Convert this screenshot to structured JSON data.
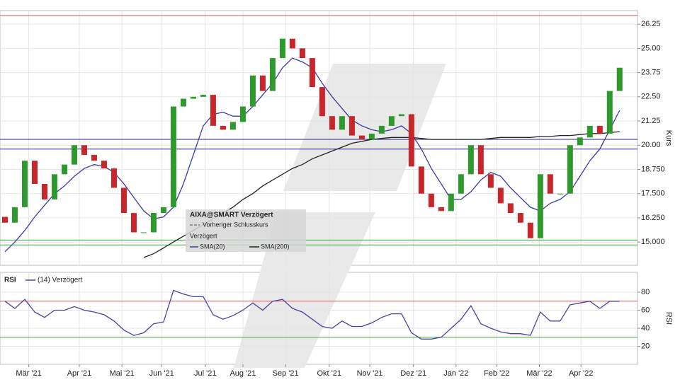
{
  "chart_data": [
    {
      "type": "candlestick",
      "y_label": "Kurs",
      "legend_title": "AIXA@SMART Verzögert",
      "legend_notes": [
        "Vorheriger Schlusskurs",
        "Verzögert"
      ],
      "x": [
        0,
        1,
        2,
        3,
        4,
        5,
        6,
        7,
        8,
        9,
        10,
        11,
        12,
        13,
        14,
        15,
        16,
        17,
        18,
        19,
        20,
        21,
        22,
        23,
        24,
        25,
        26,
        27,
        28,
        29,
        30,
        31,
        32,
        33,
        34,
        35,
        36,
        37,
        38,
        39,
        40,
        41,
        42,
        43,
        44,
        45,
        46,
        47,
        48,
        49,
        50,
        51,
        52,
        53,
        54,
        55,
        56,
        57,
        58,
        59,
        60,
        61,
        62
      ],
      "open": [
        16.3,
        16.0,
        16.8,
        19.2,
        18.0,
        17.2,
        18.5,
        19.0,
        20.0,
        19.5,
        19.2,
        18.8,
        17.8,
        16.5,
        15.5,
        15.5,
        16.5,
        16.8,
        22.0,
        22.4,
        22.5,
        22.6,
        21.0,
        20.8,
        21.2,
        22.0,
        23.6,
        22.8,
        24.5,
        25.5,
        25.0,
        24.5,
        23.0,
        21.5,
        20.8,
        21.5,
        20.5,
        20.3,
        20.6,
        21.0,
        21.5,
        21.6,
        18.9,
        17.5,
        16.8,
        16.6,
        17.5,
        18.5,
        20.0,
        18.5,
        17.8,
        17.0,
        16.5,
        16.0,
        15.2,
        18.5,
        17.5,
        17.5,
        20.0,
        20.4,
        21.0,
        20.6,
        22.8
      ],
      "close": [
        16.0,
        16.8,
        19.2,
        18.0,
        17.2,
        18.5,
        19.0,
        20.0,
        19.5,
        19.2,
        18.8,
        17.8,
        16.5,
        15.5,
        15.5,
        16.5,
        16.8,
        22.0,
        22.4,
        22.5,
        22.6,
        21.0,
        20.8,
        21.2,
        22.0,
        23.6,
        22.8,
        24.5,
        25.5,
        25.0,
        24.5,
        23.0,
        21.5,
        20.8,
        21.5,
        20.5,
        20.3,
        20.6,
        21.0,
        21.5,
        21.6,
        18.9,
        17.5,
        16.8,
        16.6,
        17.5,
        18.5,
        20.0,
        18.5,
        17.8,
        17.0,
        16.5,
        16.0,
        15.2,
        18.5,
        17.5,
        17.5,
        20.0,
        20.4,
        21.0,
        20.6,
        22.8,
        24.0
      ],
      "up_color": "#2e9a2e",
      "down_color": "#c8262b",
      "series": [
        {
          "name": "SMA(20)",
          "color": "#3b3ba6",
          "values": [
            14.5,
            15.0,
            15.6,
            16.3,
            16.9,
            17.5,
            17.9,
            18.4,
            18.8,
            19.0,
            18.9,
            18.6,
            18.0,
            17.3,
            16.6,
            16.2,
            16.3,
            16.8,
            18.0,
            19.5,
            21.0,
            21.6,
            21.7,
            21.5,
            21.5,
            22.0,
            22.6,
            23.2,
            24.0,
            24.5,
            24.3,
            24.0,
            23.2,
            22.5,
            21.9,
            21.3,
            21.0,
            20.8,
            20.7,
            20.8,
            21.0,
            20.6,
            19.8,
            18.8,
            18.0,
            17.2,
            17.2,
            17.6,
            18.2,
            18.6,
            18.4,
            17.8,
            17.3,
            16.8,
            16.6,
            17.0,
            17.2,
            17.6,
            18.4,
            19.2,
            19.8,
            20.8,
            21.8
          ]
        },
        {
          "name": "SMA(200)",
          "color": "#222222",
          "values": [
            null,
            null,
            null,
            null,
            null,
            null,
            null,
            null,
            null,
            null,
            null,
            null,
            null,
            null,
            14.2,
            14.4,
            14.7,
            15.0,
            15.3,
            15.6,
            15.9,
            16.2,
            16.5,
            16.8,
            17.2,
            17.5,
            17.9,
            18.2,
            18.5,
            18.8,
            19.0,
            19.3,
            19.5,
            19.7,
            19.9,
            20.1,
            20.2,
            20.3,
            20.35,
            20.4,
            20.4,
            20.4,
            20.35,
            20.3,
            20.3,
            20.3,
            20.3,
            20.3,
            20.3,
            20.35,
            20.4,
            20.4,
            20.4,
            20.4,
            20.45,
            20.45,
            20.5,
            20.5,
            20.55,
            20.6,
            20.6,
            20.65,
            20.7
          ]
        }
      ],
      "reference_lines": [
        {
          "value": 26.7,
          "color": "#e05555"
        },
        {
          "value": 20.3,
          "color": "#23238f"
        },
        {
          "value": 19.8,
          "color": "#23238f"
        },
        {
          "value": 15.1,
          "color": "#3aa83a"
        },
        {
          "value": 14.85,
          "color": "#3aa83a"
        }
      ],
      "xlim": [
        -0.5,
        63.8
      ],
      "ylim": [
        13.8,
        26.95
      ],
      "yticks": [
        {
          "value": 15,
          "label": "15.000"
        },
        {
          "value": 16.25,
          "label": "16.250"
        },
        {
          "value": 17.5,
          "label": "17.500"
        },
        {
          "value": 18.75,
          "label": "18.750"
        },
        {
          "value": 20,
          "label": "20.00"
        },
        {
          "value": 21.25,
          "label": "21.25"
        },
        {
          "value": 22.5,
          "label": "22.50"
        },
        {
          "value": 23.75,
          "label": "23.75"
        },
        {
          "value": 25,
          "label": "25.00"
        },
        {
          "value": 26.25,
          "label": "26.25"
        }
      ],
      "grid": true
    },
    {
      "type": "line",
      "title": "RSI",
      "y_label": "RSI",
      "x": [
        0,
        1,
        2,
        3,
        4,
        5,
        6,
        7,
        8,
        9,
        10,
        11,
        12,
        13,
        14,
        15,
        16,
        17,
        18,
        19,
        20,
        21,
        22,
        23,
        24,
        25,
        26,
        27,
        28,
        29,
        30,
        31,
        32,
        33,
        34,
        35,
        36,
        37,
        38,
        39,
        40,
        41,
        42,
        43,
        44,
        45,
        46,
        47,
        48,
        49,
        50,
        51,
        52,
        53,
        54,
        55,
        56,
        57,
        58,
        59,
        60,
        61,
        62
      ],
      "series": [
        {
          "name": "(14) Verzögert",
          "color": "#4545a0",
          "values": [
            70,
            62,
            72,
            58,
            52,
            60,
            60,
            64,
            60,
            58,
            55,
            48,
            38,
            32,
            35,
            45,
            47,
            82,
            78,
            75,
            75,
            55,
            50,
            54,
            60,
            68,
            60,
            70,
            72,
            62,
            58,
            50,
            42,
            40,
            48,
            42,
            42,
            46,
            52,
            56,
            56,
            35,
            28,
            28,
            30,
            40,
            50,
            65,
            45,
            40,
            36,
            34,
            34,
            32,
            58,
            48,
            48,
            66,
            68,
            70,
            62,
            70,
            70
          ]
        }
      ],
      "reference_lines": [
        {
          "value": 70,
          "color": "#e05555"
        },
        {
          "value": 30,
          "color": "#3aa83a"
        }
      ],
      "xlim": [
        -0.5,
        63.8
      ],
      "ylim": [
        0,
        102
      ],
      "yticks": [
        20,
        40,
        60,
        80
      ],
      "xticks": [
        {
          "value": 2.4,
          "label": "Mär '21"
        },
        {
          "value": 7.5,
          "label": "Apr '21"
        },
        {
          "value": 11.8,
          "label": "Mai '21"
        },
        {
          "value": 15.8,
          "label": "Jun '21"
        },
        {
          "value": 20.2,
          "label": "Jul '21"
        },
        {
          "value": 24,
          "label": "Aug '21"
        },
        {
          "value": 28.3,
          "label": "Sep '21"
        },
        {
          "value": 32.7,
          "label": "Okt '21"
        },
        {
          "value": 36.8,
          "label": "Nov '21"
        },
        {
          "value": 41.2,
          "label": "Dez '21"
        },
        {
          "value": 45.5,
          "label": "Jan '22"
        },
        {
          "value": 49.6,
          "label": "Feb '22"
        },
        {
          "value": 53.9,
          "label": "Mär '22"
        },
        {
          "value": 58.1,
          "label": "Apr '22"
        }
      ],
      "grid": true
    }
  ]
}
